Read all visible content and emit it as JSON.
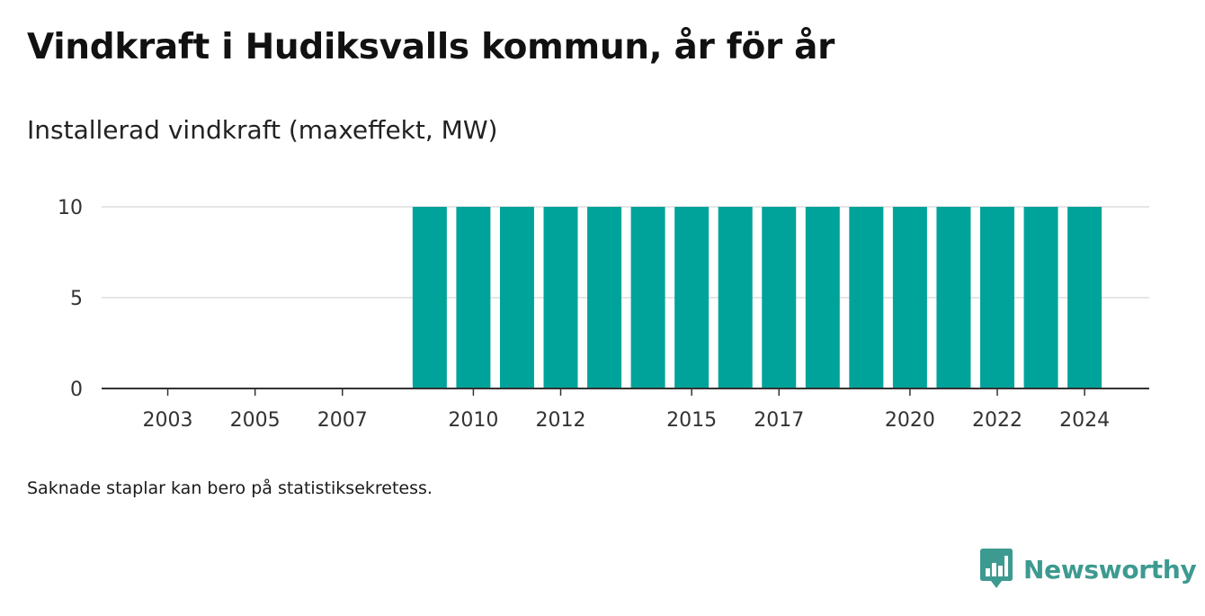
{
  "chart_data": {
    "type": "bar",
    "title": "Vindkraft i Hudiksvalls kommun, år för år",
    "subtitle": "Installerad vindkraft (maxeffekt, MW)",
    "categories": [
      "2002",
      "2003",
      "2004",
      "2005",
      "2006",
      "2007",
      "2008",
      "2009",
      "2010",
      "2011",
      "2012",
      "2013",
      "2014",
      "2015",
      "2016",
      "2017",
      "2018",
      "2019",
      "2020",
      "2021",
      "2022",
      "2023",
      "2024"
    ],
    "values": [
      null,
      null,
      null,
      null,
      null,
      null,
      null,
      10,
      10,
      10,
      10,
      10,
      10,
      10,
      10,
      10,
      10,
      10,
      10,
      10,
      10,
      10,
      10
    ],
    "x_tick_labels": [
      "2003",
      "2005",
      "2007",
      "2010",
      "2012",
      "2015",
      "2017",
      "2020",
      "2022",
      "2024"
    ],
    "y_ticks": [
      0,
      5,
      10
    ],
    "ylim": [
      0,
      10
    ],
    "grid": true,
    "bar_color": "#00a39a"
  },
  "footnote": "Saknade staplar kan bero på statistiksekretess.",
  "brand": {
    "name": "Newsworthy",
    "color": "#3d9a90"
  }
}
